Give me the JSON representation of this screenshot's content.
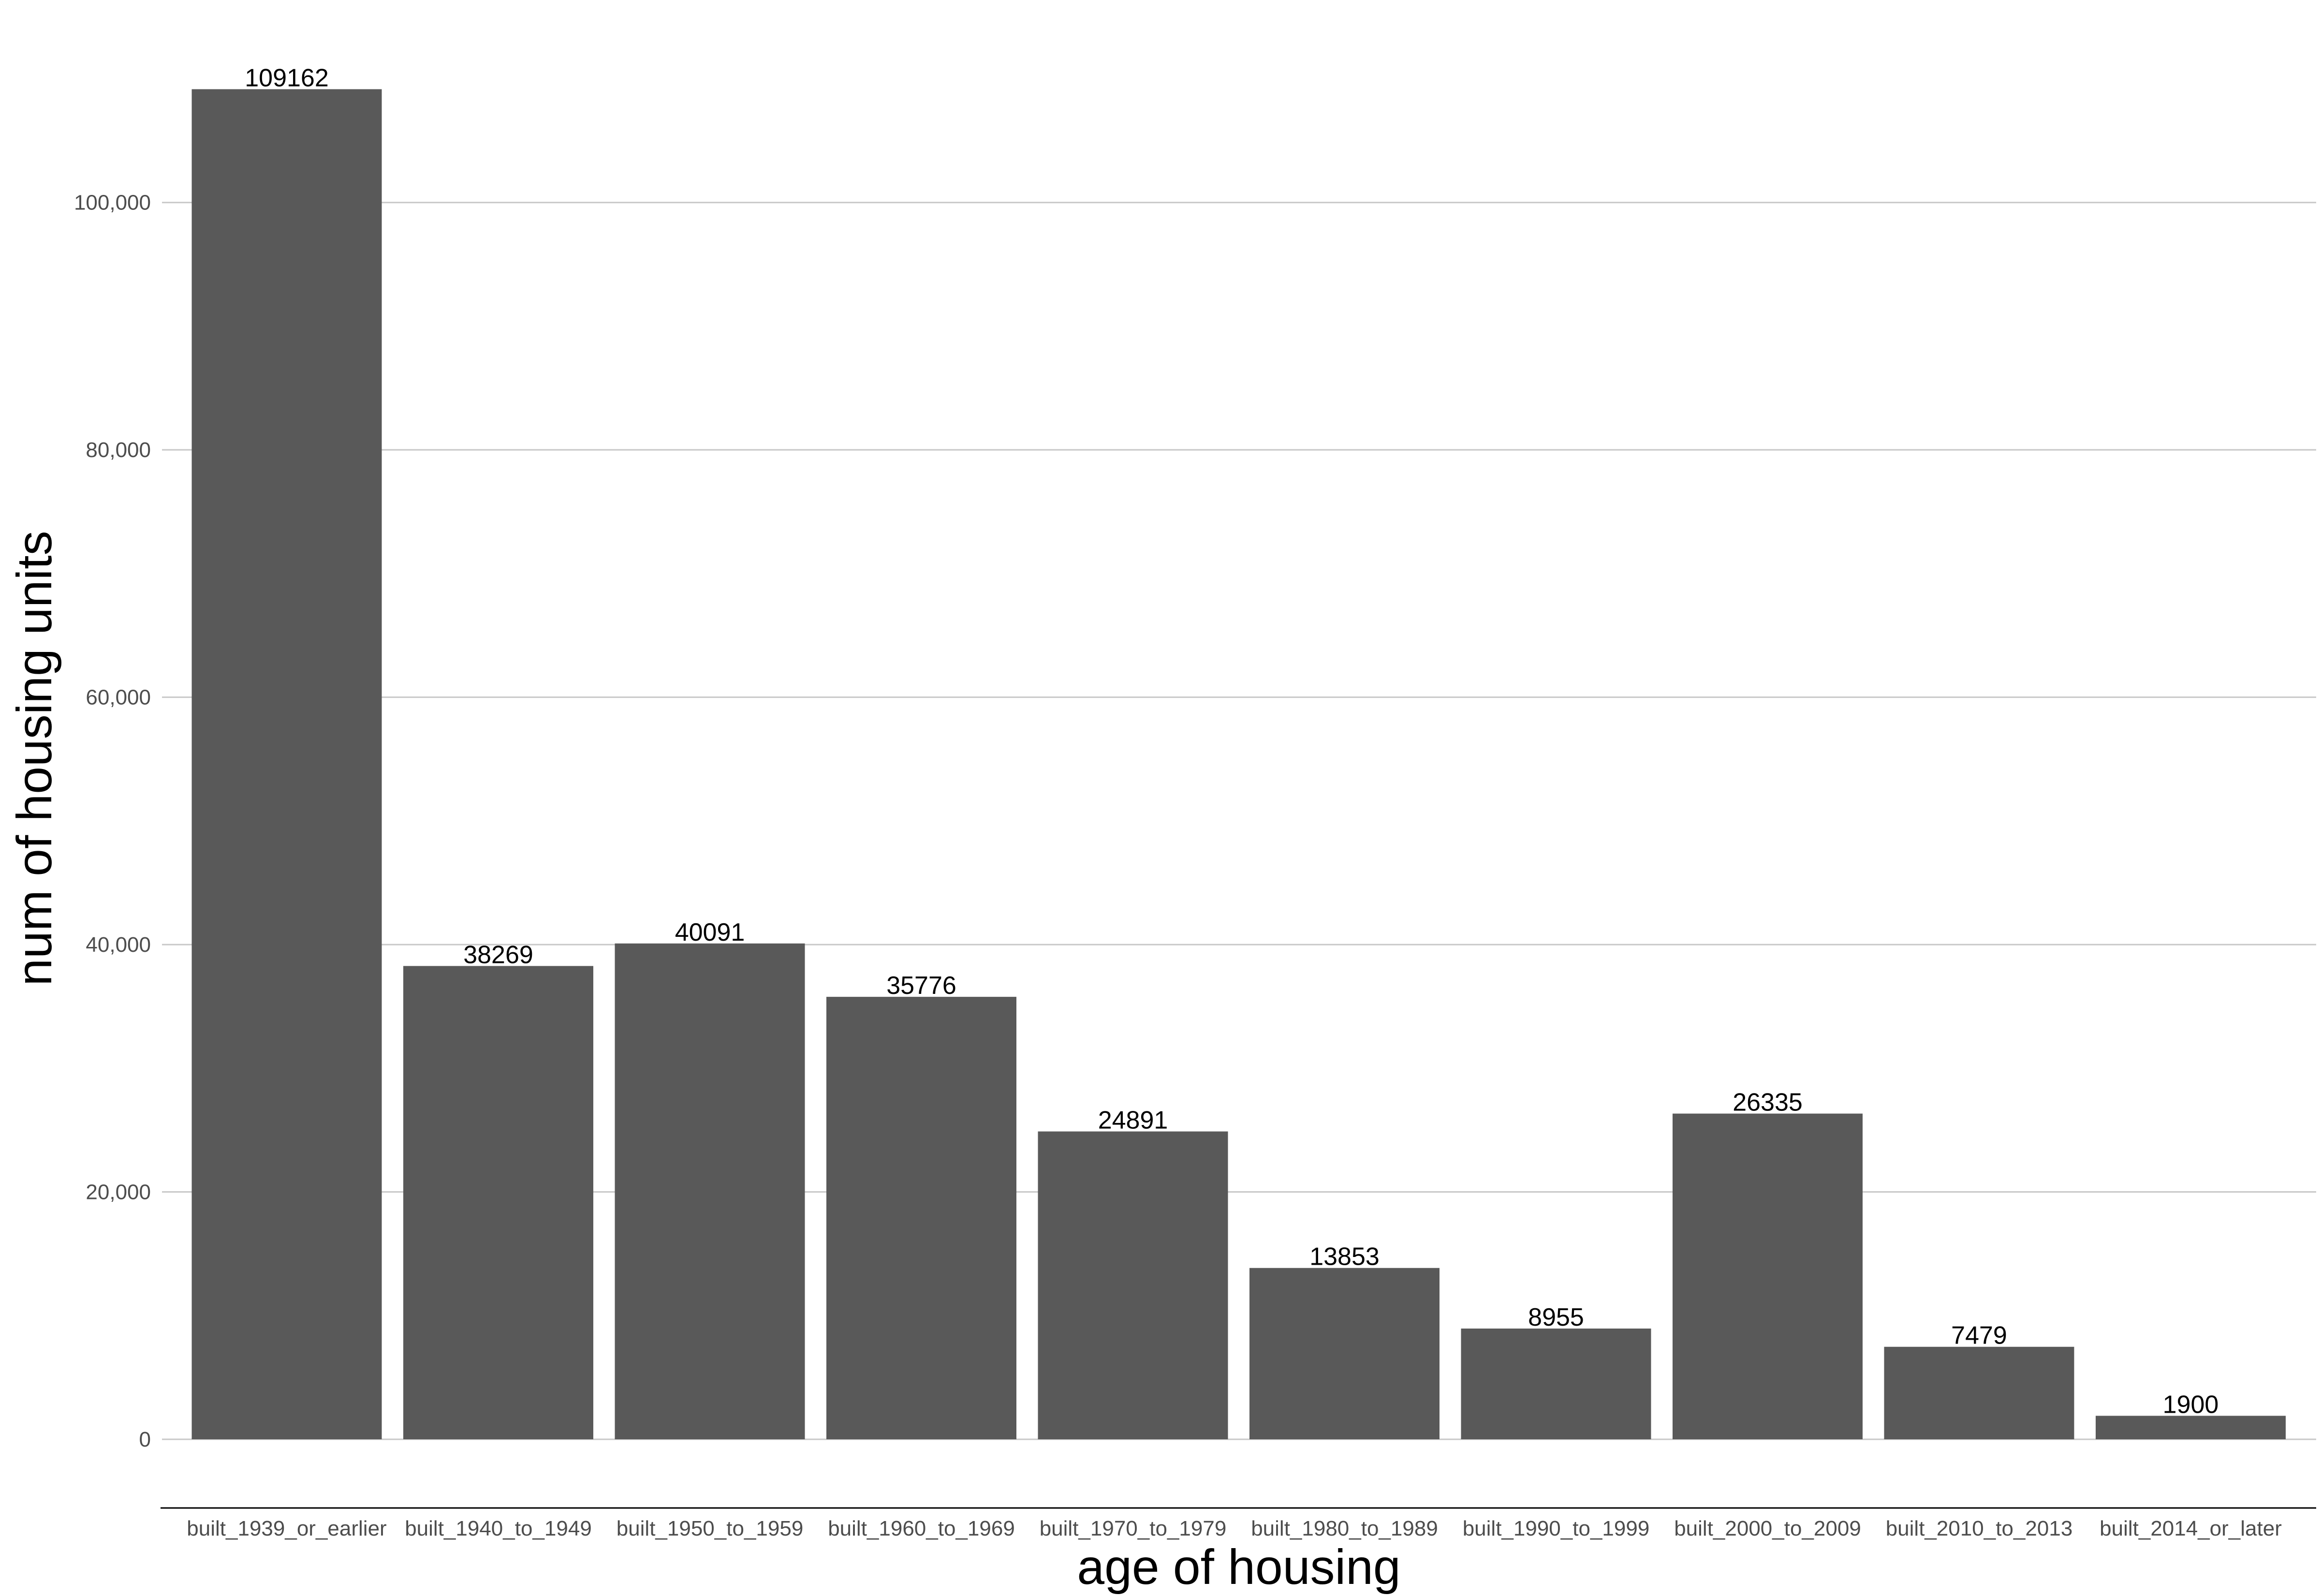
{
  "chart_data": {
    "type": "bar",
    "categories": [
      "built_1939_or_earlier",
      "built_1940_to_1949",
      "built_1950_to_1959",
      "built_1960_to_1969",
      "built_1970_to_1979",
      "built_1980_to_1989",
      "built_1990_to_1999",
      "built_2000_to_2009",
      "built_2010_to_2013",
      "built_2014_or_later"
    ],
    "values": [
      109162,
      38269,
      40091,
      35776,
      24891,
      13853,
      8955,
      26335,
      7479,
      1900
    ],
    "data_labels": [
      "109162",
      "38269",
      "40091",
      "35776",
      "24891",
      "13853",
      "8955",
      "26335",
      "7479",
      "1900"
    ],
    "xlabel": "age of housing",
    "ylabel": "num of housing units",
    "ylim": [
      0,
      110000
    ],
    "yticks": [
      0,
      20000,
      40000,
      60000,
      80000,
      100000
    ],
    "ytick_labels": [
      "0",
      "20,000",
      "40,000",
      "60,000",
      "80,000",
      "100,000"
    ],
    "grid": "horizontal",
    "bar_color": "#595959",
    "grid_color": "#c8c8c8"
  }
}
